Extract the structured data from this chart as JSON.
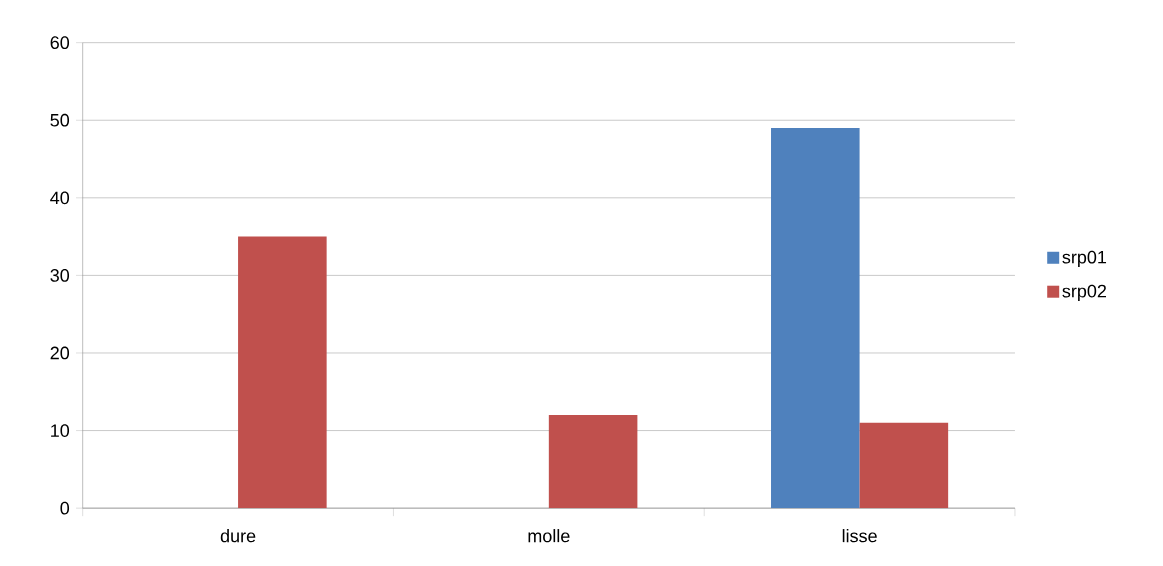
{
  "chart_data": {
    "type": "bar",
    "categories": [
      "dure",
      "molle",
      "lisse"
    ],
    "series": [
      {
        "name": "srp01",
        "color": "#4f81bd",
        "values": [
          0,
          0,
          49
        ]
      },
      {
        "name": "srp02",
        "color": "#c0504d",
        "values": [
          35,
          12,
          11
        ]
      }
    ],
    "ylim": [
      0,
      60
    ],
    "yticks": [
      0,
      10,
      20,
      30,
      40,
      50,
      60
    ],
    "grid": "y",
    "legend": "right"
  }
}
